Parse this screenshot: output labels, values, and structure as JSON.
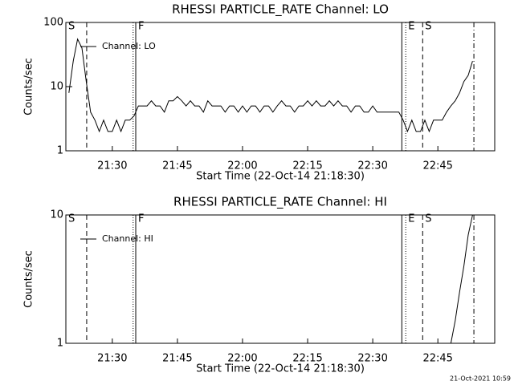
{
  "chart_data": [
    {
      "type": "line",
      "title": "RHESSI PARTICLE_RATE Channel: LO",
      "ylabel": "Counts/sec",
      "xlabel": "Start Time (22-Oct-14 21:18:30)",
      "ylog": true,
      "ylim": [
        1,
        100
      ],
      "yticks": [
        1,
        10,
        100
      ],
      "xlim": [
        1279.3,
        1378.1
      ],
      "xticks": [
        {
          "value": 1290,
          "label": "21:30"
        },
        {
          "value": 1305,
          "label": "21:45"
        },
        {
          "value": 1320,
          "label": "22:00"
        },
        {
          "value": 1335,
          "label": "22:15"
        },
        {
          "value": 1350,
          "label": "22:30"
        },
        {
          "value": 1365,
          "label": "22:45"
        }
      ],
      "legend": "upper-left",
      "markers": [
        {
          "x": 1279.3,
          "label": "S",
          "style": "solid"
        },
        {
          "x": 1284.1,
          "style": "dashed"
        },
        {
          "x": 1294.8,
          "style": "dotted"
        },
        {
          "x": 1295.4,
          "label": "F",
          "style": "solid"
        },
        {
          "x": 1356.7,
          "style": "solid"
        },
        {
          "x": 1357.6,
          "label": "E",
          "style": "dotted"
        },
        {
          "x": 1361.5,
          "label": "S",
          "style": "dashed"
        },
        {
          "x": 1373.3,
          "style": "dashdot"
        }
      ],
      "x": [
        1280,
        1281,
        1282,
        1283,
        1284,
        1285,
        1286,
        1287,
        1288,
        1289,
        1290,
        1291,
        1292,
        1293,
        1294,
        1295,
        1296,
        1297,
        1298,
        1299,
        1300,
        1301,
        1302,
        1303,
        1304,
        1305,
        1306,
        1307,
        1308,
        1309,
        1310,
        1311,
        1312,
        1313,
        1314,
        1315,
        1316,
        1317,
        1318,
        1319,
        1320,
        1321,
        1322,
        1323,
        1324,
        1325,
        1326,
        1327,
        1328,
        1329,
        1330,
        1331,
        1332,
        1333,
        1334,
        1335,
        1336,
        1337,
        1338,
        1339,
        1340,
        1341,
        1342,
        1343,
        1344,
        1345,
        1346,
        1347,
        1348,
        1349,
        1350,
        1351,
        1352,
        1353,
        1354,
        1355,
        1356,
        1357,
        1358,
        1359,
        1360,
        1361,
        1362,
        1363,
        1364,
        1365,
        1366,
        1367,
        1368,
        1369,
        1370,
        1371,
        1372,
        1373
      ],
      "series": [
        {
          "name": "Channel: LO",
          "color": "#000000",
          "values": [
            8,
            25,
            55,
            40,
            12,
            4,
            3,
            2,
            3,
            2,
            2,
            3,
            2,
            3,
            3,
            3.5,
            5,
            5,
            5,
            6,
            5,
            5,
            4,
            6,
            6,
            7,
            6,
            5,
            6,
            5,
            5,
            4,
            6,
            5,
            5,
            5,
            4,
            5,
            5,
            4,
            5,
            4,
            5,
            5,
            4,
            5,
            5,
            4,
            5,
            6,
            5,
            5,
            4,
            5,
            5,
            6,
            5,
            6,
            5,
            5,
            6,
            5,
            6,
            5,
            5,
            4,
            5,
            5,
            4,
            4,
            5,
            4,
            4,
            4,
            4,
            4,
            4,
            3,
            2,
            3,
            2,
            2,
            3,
            2,
            3,
            3,
            3,
            4,
            5,
            6,
            8,
            12,
            15,
            25
          ]
        }
      ]
    },
    {
      "type": "line",
      "title": "RHESSI PARTICLE_RATE Channel: HI",
      "ylabel": "Counts/sec",
      "xlabel": "Start Time (22-Oct-14 21:18:30)",
      "ylog": true,
      "ylim": [
        1,
        10
      ],
      "yticks": [
        1,
        10
      ],
      "xlim": [
        1279.3,
        1378.1
      ],
      "xticks": [
        {
          "value": 1290,
          "label": "21:30"
        },
        {
          "value": 1305,
          "label": "21:45"
        },
        {
          "value": 1320,
          "label": "22:00"
        },
        {
          "value": 1335,
          "label": "22:15"
        },
        {
          "value": 1350,
          "label": "22:30"
        },
        {
          "value": 1365,
          "label": "22:45"
        }
      ],
      "legend": "upper-left",
      "markers": [
        {
          "x": 1279.3,
          "label": "S",
          "style": "solid"
        },
        {
          "x": 1284.1,
          "style": "dashed"
        },
        {
          "x": 1294.8,
          "style": "dotted"
        },
        {
          "x": 1295.4,
          "label": "F",
          "style": "solid"
        },
        {
          "x": 1356.7,
          "style": "solid"
        },
        {
          "x": 1357.6,
          "label": "E",
          "style": "dotted"
        },
        {
          "x": 1361.5,
          "label": "S",
          "style": "dashed"
        },
        {
          "x": 1373.3,
          "style": "dashdot"
        }
      ],
      "x": [
        1368,
        1369,
        1370,
        1371,
        1372,
        1373
      ],
      "series": [
        {
          "name": "Channel: HI",
          "color": "#000000",
          "values": [
            1,
            1.5,
            2.5,
            4,
            7,
            10
          ]
        }
      ]
    }
  ],
  "footer": "21-Oct-2021 10:59"
}
